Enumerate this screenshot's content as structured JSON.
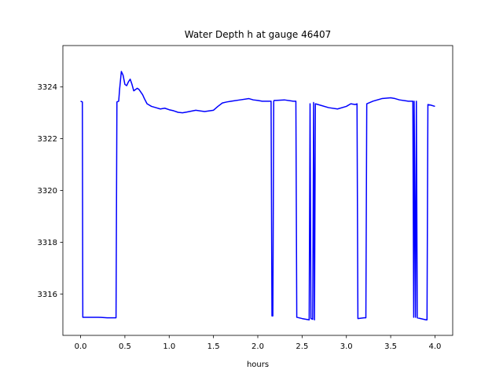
{
  "chart_data": {
    "type": "line",
    "title": "Water Depth h at gauge 46407",
    "xlabel": "hours",
    "ylabel": "",
    "xlim": [
      -0.2,
      4.2
    ],
    "ylim": [
      3314.4,
      3325.6
    ],
    "x_ticks": [
      0.0,
      0.5,
      1.0,
      1.5,
      2.0,
      2.5,
      3.0,
      3.5,
      4.0
    ],
    "x_tick_labels": [
      "0.0",
      "0.5",
      "1.0",
      "1.5",
      "2.0",
      "2.5",
      "3.0",
      "3.5",
      "4.0"
    ],
    "y_ticks": [
      3316,
      3318,
      3320,
      3322,
      3324
    ],
    "y_tick_labels": [
      "3316",
      "3318",
      "3320",
      "3322",
      "3324"
    ],
    "grid": false,
    "series": [
      {
        "color": "#0000ff",
        "x": [
          0.0,
          0.02,
          0.025,
          0.1,
          0.2,
          0.3,
          0.35,
          0.4,
          0.41,
          0.43,
          0.44,
          0.46,
          0.48,
          0.5,
          0.52,
          0.54,
          0.56,
          0.58,
          0.6,
          0.62,
          0.64,
          0.66,
          0.68,
          0.7,
          0.72,
          0.75,
          0.8,
          0.85,
          0.9,
          0.95,
          1.0,
          1.05,
          1.1,
          1.15,
          1.2,
          1.3,
          1.4,
          1.5,
          1.55,
          1.6,
          1.65,
          1.7,
          1.8,
          1.9,
          1.95,
          2.0,
          2.05,
          2.1,
          2.15,
          2.16,
          2.17,
          2.18,
          2.185,
          2.2,
          2.3,
          2.4,
          2.43,
          2.44,
          2.5,
          2.58,
          2.59,
          2.6,
          2.62,
          2.63,
          2.64,
          2.65,
          2.7,
          2.8,
          2.9,
          3.0,
          3.05,
          3.1,
          3.12,
          3.13,
          3.2,
          3.22,
          3.23,
          3.3,
          3.4,
          3.5,
          3.55,
          3.6,
          3.7,
          3.75,
          3.76,
          3.765,
          3.78,
          3.79,
          3.8,
          3.9,
          3.91,
          3.92,
          3.95,
          4.0
        ],
        "y": [
          3323.45,
          3323.42,
          3315.1,
          3315.1,
          3315.1,
          3315.08,
          3315.08,
          3315.08,
          3323.42,
          3323.45,
          3323.9,
          3324.6,
          3324.45,
          3324.1,
          3324.05,
          3324.2,
          3324.3,
          3324.1,
          3323.85,
          3323.9,
          3323.95,
          3323.9,
          3323.8,
          3323.7,
          3323.55,
          3323.35,
          3323.25,
          3323.2,
          3323.15,
          3323.18,
          3323.12,
          3323.08,
          3323.02,
          3323.0,
          3323.03,
          3323.1,
          3323.05,
          3323.1,
          3323.25,
          3323.38,
          3323.42,
          3323.45,
          3323.5,
          3323.55,
          3323.5,
          3323.48,
          3323.45,
          3323.45,
          3323.45,
          3315.15,
          3315.15,
          3323.45,
          3323.48,
          3323.48,
          3323.5,
          3323.45,
          3323.45,
          3315.1,
          3315.05,
          3315.0,
          3323.35,
          3315.05,
          3315.02,
          3323.4,
          3315.0,
          3323.35,
          3323.3,
          3323.2,
          3323.15,
          3323.25,
          3323.35,
          3323.32,
          3323.35,
          3315.05,
          3315.08,
          3315.08,
          3323.35,
          3323.45,
          3323.55,
          3323.58,
          3323.55,
          3323.5,
          3323.45,
          3323.45,
          3315.1,
          3323.45,
          3315.1,
          3323.45,
          3315.08,
          3315.0,
          3315.0,
          3323.32,
          3323.3,
          3323.25
        ]
      }
    ]
  }
}
